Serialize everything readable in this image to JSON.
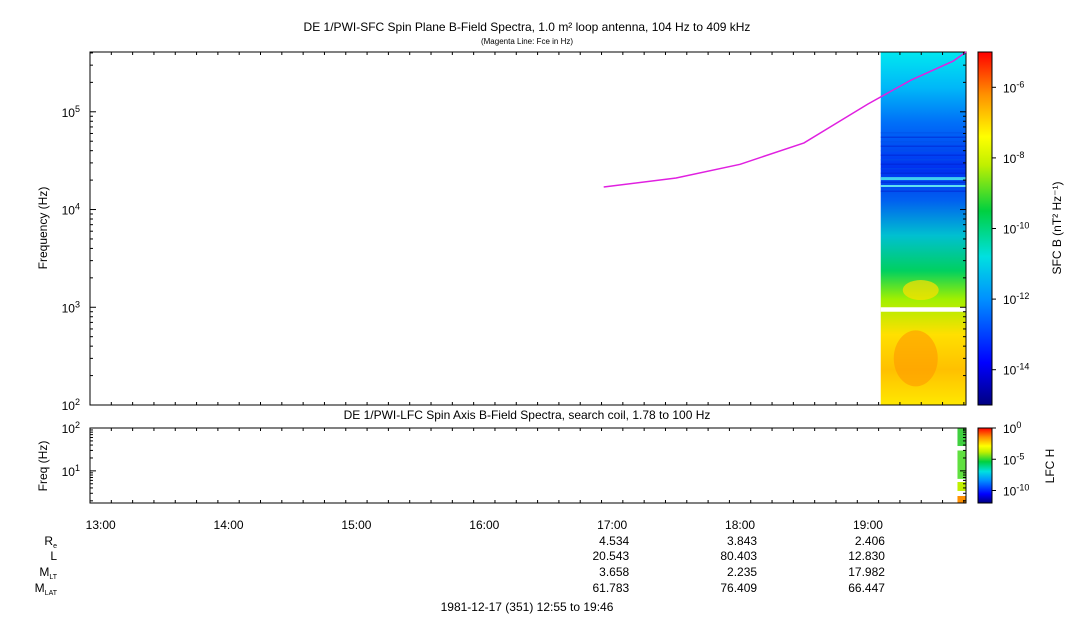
{
  "chart_data": [
    {
      "type": "heatmap",
      "title": "DE 1/PWI-SFC  Spin Plane B-Field Spectra, 1.0 m² loop antenna, 104 Hz to 409 kHz",
      "subtitle": "(Magenta Line: Fce in Hz)",
      "ylabel": "Frequency (Hz)",
      "yscale": "log",
      "ylim": [
        100,
        409000
      ],
      "yticks": [
        {
          "base": "10",
          "exp": "2"
        },
        {
          "base": "10",
          "exp": "3"
        },
        {
          "base": "10",
          "exp": "4"
        },
        {
          "base": "10",
          "exp": "5"
        }
      ],
      "xlim": [
        "12:55",
        "19:46"
      ],
      "data_start": "19:06",
      "data_end": "19:46",
      "gap_band_hz": [
        900,
        1000
      ],
      "colorbar": {
        "label": "SFC B (nT² Hz⁻¹)",
        "scale": "log",
        "range": [
          1e-15,
          1e-05
        ],
        "ticks": [
          {
            "base": "10",
            "exp": "-6"
          },
          {
            "base": "10",
            "exp": "-8"
          },
          {
            "base": "10",
            "exp": "-10"
          },
          {
            "base": "10",
            "exp": "-12"
          },
          {
            "base": "10",
            "exp": "-14"
          }
        ]
      },
      "series": [
        {
          "name": "Fce",
          "color": "#e020e0",
          "x": [
            "16:56",
            "17:30",
            "18:00",
            "18:30",
            "19:00",
            "19:20",
            "19:40",
            "19:46"
          ],
          "y": [
            17000,
            21000,
            29000,
            48000,
            120000,
            210000,
            330000,
            409000
          ]
        }
      ]
    },
    {
      "type": "heatmap",
      "title": "DE 1/PWI-LFC  Spin Axis B-Field Spectra, search coil, 1.78 to 100 Hz",
      "ylabel": "Freq (Hz)",
      "yscale": "log",
      "ylim": [
        1.78,
        100
      ],
      "yticks": [
        {
          "base": "10",
          "exp": "2"
        },
        {
          "base": "10",
          "exp": "1"
        }
      ],
      "xlim": [
        "12:55",
        "19:46"
      ],
      "data_start": "19:42",
      "data_end": "19:46",
      "colorbar": {
        "label": "LFC H",
        "scale": "log",
        "range": [
          1e-12,
          1
        ],
        "ticks": [
          {
            "base": "10",
            "exp": "0"
          },
          {
            "base": "10",
            "exp": "-5"
          },
          {
            "base": "10",
            "exp": "-10"
          }
        ]
      }
    }
  ],
  "time_axis": {
    "ticks": [
      "13:00",
      "14:00",
      "15:00",
      "16:00",
      "17:00",
      "18:00",
      "19:00"
    ],
    "rows": [
      {
        "label": "R",
        "sub": "e",
        "values": [
          "4.534",
          "3.843",
          "2.406"
        ]
      },
      {
        "label": "L",
        "sub": "",
        "values": [
          "20.543",
          "80.403",
          "12.830"
        ]
      },
      {
        "label": "M",
        "sub": "LT",
        "values": [
          "3.658",
          "2.235",
          "17.982"
        ]
      },
      {
        "label": "M",
        "sub": "LAT",
        "values": [
          "61.783",
          "76.409",
          "66.447"
        ]
      }
    ],
    "row_value_times": [
      "17:00",
      "18:00",
      "19:00"
    ],
    "footer": "1981-12-17 (351) 12:55 to 19:46"
  }
}
